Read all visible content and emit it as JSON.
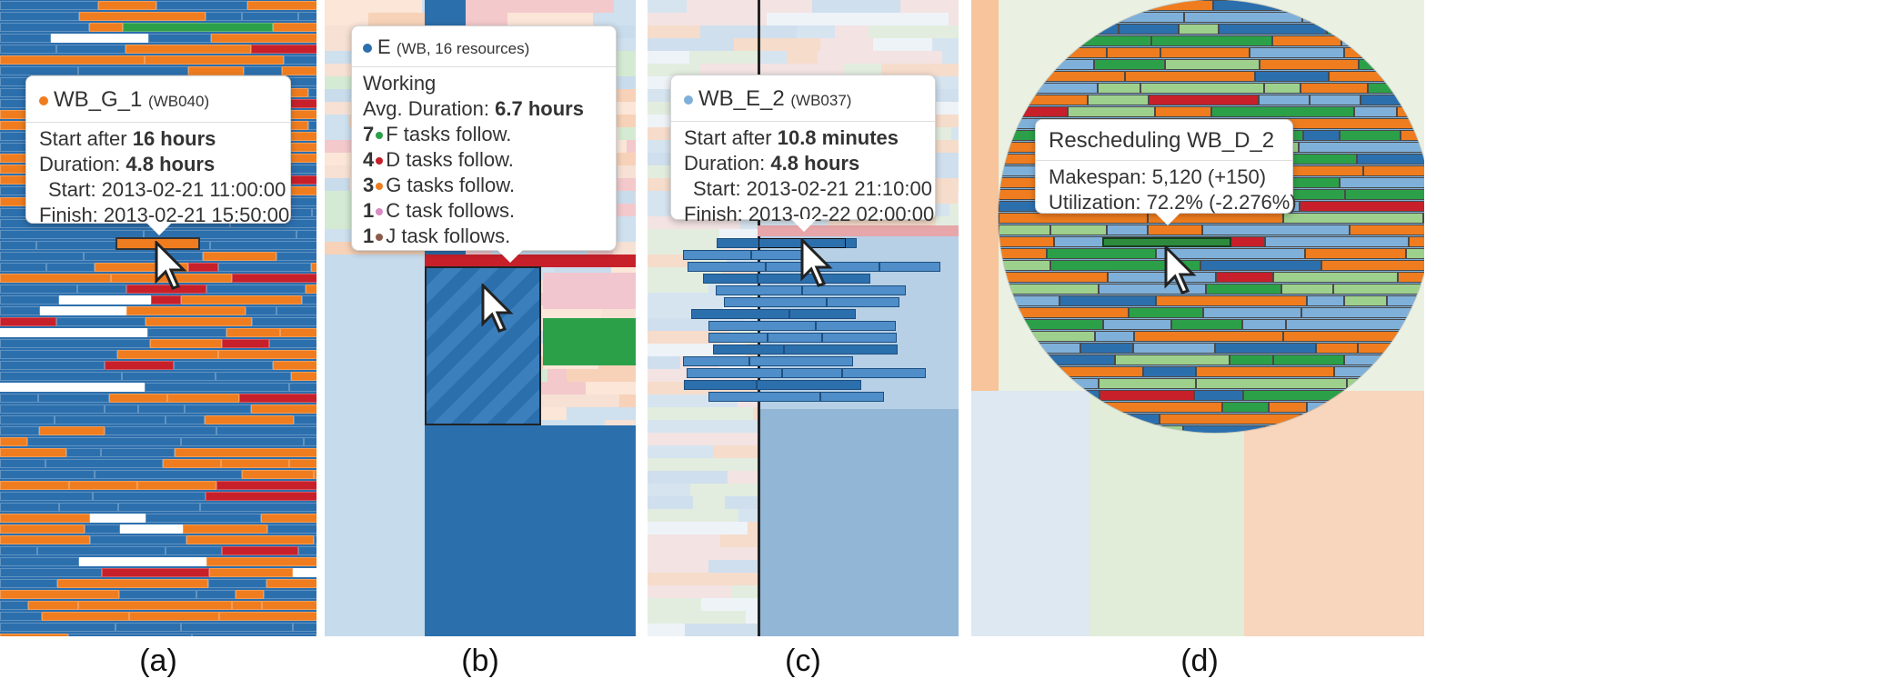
{
  "colors": {
    "blue": "#2c6fad",
    "light_blue": "#7fb0da",
    "orange": "#ef7d1f",
    "red": "#c7202a",
    "green": "#2ca049",
    "pink": "#d98bc3",
    "brown": "#8b5a4a"
  },
  "panel_a": {
    "caption": "(a)",
    "tooltip": {
      "title": "WB_G_1",
      "subtitle": "(WB040)",
      "dot_color": "#ef7d1f",
      "start_after_label": "Start after ",
      "start_after_value": "16 hours",
      "duration_label": "Duration: ",
      "duration_value": "4.8 hours",
      "start": "Start: 2013-02-21 11:00:00",
      "finish": "Finish: 2013-02-21 15:50:00"
    }
  },
  "panel_b": {
    "caption": "(b)",
    "tooltip": {
      "title": "E",
      "subtitle": "(WB, 16 resources)",
      "dot_color": "#2c6fad",
      "heading": "Working",
      "avg_label": "Avg. Duration: ",
      "avg_value": "6.7 hours",
      "follows": [
        {
          "count": "7",
          "dot": "#2ca049",
          "text": "F tasks follow."
        },
        {
          "count": "4",
          "dot": "#c7202a",
          "text": "D tasks follow."
        },
        {
          "count": "3",
          "dot": "#ef7d1f",
          "text": "G tasks follow."
        },
        {
          "count": "1",
          "dot": "#d98bc3",
          "text": "C task follows."
        },
        {
          "count": "1",
          "dot": "#8b5a4a",
          "text": "J task follows."
        }
      ]
    }
  },
  "panel_c": {
    "caption": "(c)",
    "tooltip": {
      "title": "WB_E_2",
      "subtitle": "(WB037)",
      "dot_color": "#7fb0da",
      "start_after_label": "Start after ",
      "start_after_value": "10.8 minutes",
      "duration_label": "Duration: ",
      "duration_value": "4.8 hours",
      "start": "Start: 2013-02-21 21:10:00",
      "finish": "Finish: 2013-02-22 02:00:00"
    }
  },
  "panel_d": {
    "caption": "(d)",
    "tooltip": {
      "title": "Rescheduling WB_D_2",
      "makespan": "Makespan: 5,120 (+150)",
      "utilization": "Utilization: 72.2% (-2.276%)"
    }
  }
}
